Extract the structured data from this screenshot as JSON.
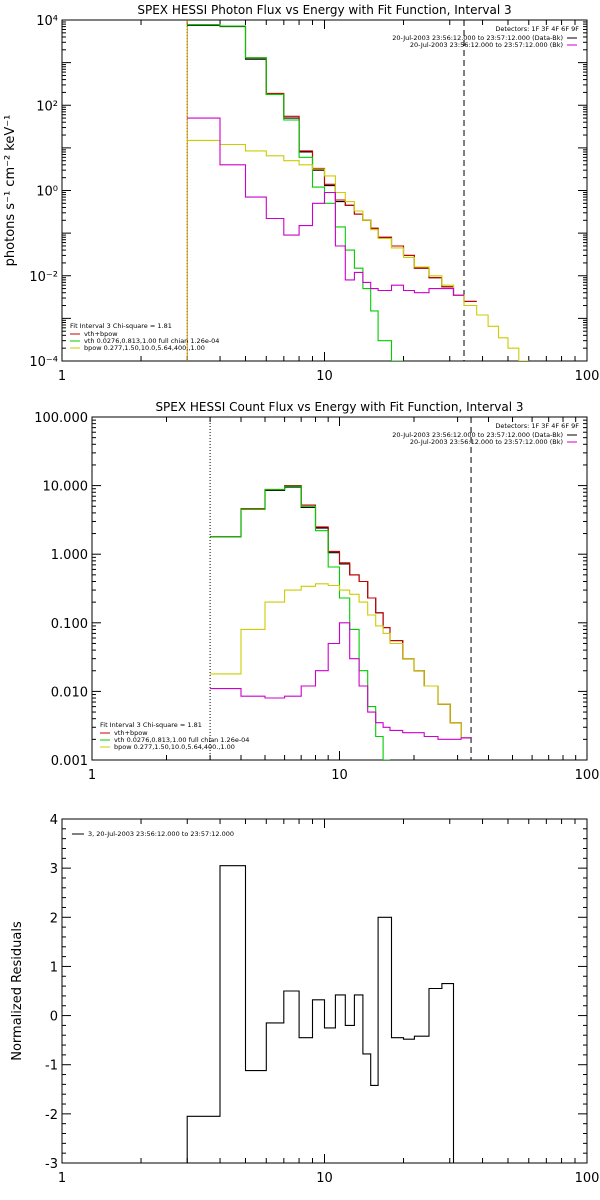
{
  "chart_data": [
    {
      "type": "line",
      "step": true,
      "title": "SPEX HESSI Photon Flux vs Energy with Fit Function, Interval 3",
      "xlabel": "",
      "ylabel": "photons s⁻¹ cm⁻² keV⁻¹",
      "xscale": "log",
      "yscale": "log",
      "xlim": [
        1,
        100
      ],
      "ylim": [
        0.0001,
        10000
      ],
      "x_ticks": [
        "1",
        "10",
        "100"
      ],
      "y_ticks": [
        "10⁻⁴",
        "10⁻²",
        "10⁰",
        "10²",
        "10⁴"
      ],
      "detectors_label": "Detectors: 1F 3F 4F 6F 9F",
      "legend_top": [
        {
          "label": "20-Jul-2003 23:56:12.000 to 23:57:12.000 (Data-Bk)",
          "color": "#000000"
        },
        {
          "label": "20-Jul-2003 23:56:12.000 to 23:57:12.000 (Bk)",
          "color": "#cc00cc"
        }
      ],
      "fit_header": "Fit Interval  3    Chi-square = 1.81",
      "legend_bottom": [
        {
          "label": "vth+bpow",
          "color": "#cc0000"
        },
        {
          "label": "vth 0.0276,0.813,1.00  full chian 1.26e-04",
          "color": "#00cc00"
        },
        {
          "label": "bpow 0.277,1.50,10.0,5.64,400.,1.00",
          "color": "#cccc00"
        }
      ],
      "vlines": [
        {
          "x": 3,
          "style": "dotted",
          "color": "#000000"
        },
        {
          "x": 3,
          "style": "solid",
          "color": "#cc9900"
        },
        {
          "x": 34,
          "style": "dashed",
          "color": "#000000"
        }
      ],
      "edges": [
        3,
        4,
        5,
        6,
        7,
        8,
        9,
        10,
        11,
        12,
        13,
        14,
        15,
        16,
        18,
        20,
        22,
        25,
        28,
        31,
        34,
        38,
        42,
        46,
        50,
        55,
        60
      ],
      "series": [
        {
          "color": "#000000",
          "values": [
            7500,
            7000,
            1200,
            180,
            50,
            8,
            3,
            1.3,
            0.55,
            0.45,
            0.28,
            0.2,
            0.13,
            0.08,
            0.05,
            0.03,
            0.015,
            0.009,
            0.0055,
            0.0035,
            0.0025
          ]
        },
        {
          "color": "#cc0000",
          "values": [
            7800,
            7200,
            1300,
            190,
            55,
            8.5,
            3.3,
            1.4,
            0.6,
            0.45,
            0.28,
            0.2,
            0.13,
            0.08,
            0.05,
            0.03,
            0.015,
            0.009,
            0.0055,
            0.0035,
            0.0025
          ]
        },
        {
          "color": "#00cc00",
          "values": [
            7800,
            7200,
            1300,
            180,
            45,
            6,
            1.2,
            0.5,
            0.14,
            0.04,
            0.015,
            0.005,
            0.0015,
            0.0003,
            0.0001
          ]
        },
        {
          "color": "#cccc00",
          "values": [
            15,
            12,
            8.5,
            6.5,
            5,
            4,
            3.2,
            2.2,
            0.9,
            0.55,
            0.33,
            0.2,
            0.12,
            0.075,
            0.045,
            0.027,
            0.016,
            0.01,
            0.006,
            0.0035,
            0.002,
            0.0012,
            0.00065,
            0.00035,
            0.0002,
            0.0001
          ]
        },
        {
          "color": "#cc00cc",
          "values": [
            50,
            4,
            0.7,
            0.22,
            0.09,
            0.15,
            0.5,
            0.9,
            0.05,
            0.008,
            0.012,
            0.007,
            0.005,
            0.0045,
            0.006,
            0.0045,
            0.004,
            0.005,
            0.005,
            0.0035
          ]
        }
      ]
    },
    {
      "type": "line",
      "step": true,
      "title": "SPEX HESSI Count Flux vs Energy with Fit Function, Interval 3",
      "xlabel": "",
      "ylabel": "",
      "xscale": "log",
      "yscale": "log",
      "xlim": [
        1,
        100
      ],
      "ylim": [
        0.001,
        100
      ],
      "x_ticks": [
        "1",
        "10",
        "100"
      ],
      "y_ticks": [
        "0.001",
        "0.010",
        "0.100",
        "1.000",
        "10.000",
        "100.000"
      ],
      "detectors_label": "Detectors: 1F 3F 4F 6F 9F",
      "legend_top": [
        {
          "label": "20-Jul-2003 23:56:12.000 to 23:57:12.000 (Data-Bk)",
          "color": "#000000"
        },
        {
          "label": "20-Jul-2003 23:56:12.000 to 23:57:12.000 (Bk)",
          "color": "#cc00cc"
        }
      ],
      "fit_header": "Fit Interval  3    Chi-square = 1.81",
      "legend_bottom": [
        {
          "label": "vth+bpow",
          "color": "#cc0000"
        },
        {
          "label": "vth 0.0276,0.813,1.00  full chian 1.26e-04",
          "color": "#00cc00"
        },
        {
          "label": "bpow 0.277,1.50,10.0,5.64,400.,1.00",
          "color": "#cccc00"
        }
      ],
      "vlines": [
        {
          "x": 3,
          "style": "dotted",
          "color": "#000000"
        },
        {
          "x": 34,
          "style": "dashed",
          "color": "#000000"
        }
      ],
      "edges": [
        3,
        4,
        5,
        6,
        7,
        8,
        9,
        10,
        11,
        12,
        13,
        14,
        15,
        16,
        18,
        20,
        22,
        25,
        28,
        31,
        34
      ],
      "series": [
        {
          "color": "#000000",
          "values": [
            1.8,
            4.5,
            8.5,
            9.5,
            4.8,
            2.4,
            1.05,
            0.72,
            0.5,
            0.4,
            0.23,
            0.14,
            0.085,
            0.055,
            0.03,
            0.02,
            0.012,
            0.0065,
            0.0035,
            0.0021
          ]
        },
        {
          "color": "#cc0000",
          "values": [
            1.8,
            4.6,
            8.8,
            10,
            5.2,
            2.5,
            1.1,
            0.75,
            0.5,
            0.4,
            0.23,
            0.14,
            0.085,
            0.055,
            0.03,
            0.02,
            0.012,
            0.0065,
            0.0035,
            0.0021
          ]
        },
        {
          "color": "#00cc00",
          "values": [
            1.8,
            4.5,
            8.7,
            9.8,
            5,
            2.2,
            0.65,
            0.23,
            0.08,
            0.02,
            0.006,
            0.0022,
            0.001
          ]
        },
        {
          "color": "#cccc00",
          "values": [
            0.018,
            0.08,
            0.2,
            0.3,
            0.34,
            0.37,
            0.35,
            0.3,
            0.26,
            0.2,
            0.13,
            0.09,
            0.07,
            0.05,
            0.03,
            0.02,
            0.012,
            0.0065,
            0.0035,
            0.0021
          ]
        },
        {
          "color": "#cc00cc",
          "values": [
            0.011,
            0.0085,
            0.008,
            0.0085,
            0.012,
            0.02,
            0.05,
            0.1,
            0.03,
            0.012,
            0.005,
            0.0035,
            0.003,
            0.0027,
            0.0025,
            0.0025,
            0.0022,
            0.002,
            0.002,
            0.0021
          ]
        }
      ]
    },
    {
      "type": "line",
      "step": true,
      "title": "",
      "xlabel": "",
      "ylabel": "Normalized Residuals",
      "xscale": "log",
      "yscale": "linear",
      "xlim": [
        1,
        100
      ],
      "ylim": [
        -3,
        4
      ],
      "x_ticks": [
        "1",
        "10",
        "100"
      ],
      "y_ticks": [
        "-3",
        "-2",
        "-1",
        "0",
        "1",
        "2",
        "3",
        "4"
      ],
      "legend_top": [
        {
          "label": "3, 20-Jul-2003 23:56:12.000 to 23:57:12.000",
          "color": "#000000"
        }
      ],
      "edges": [
        3,
        4,
        5,
        6,
        7,
        8,
        9,
        10,
        11,
        12,
        13,
        14,
        15,
        16,
        18,
        20,
        22,
        25,
        28,
        31,
        34
      ],
      "series": [
        {
          "color": "#000000",
          "values": [
            -2.05,
            3.05,
            -1.12,
            -0.15,
            0.5,
            -0.45,
            0.32,
            -0.25,
            0.42,
            -0.2,
            0.42,
            -0.78,
            -1.42,
            2.0,
            -0.45,
            -0.48,
            -0.42,
            0.55,
            0.65
          ]
        }
      ]
    }
  ]
}
